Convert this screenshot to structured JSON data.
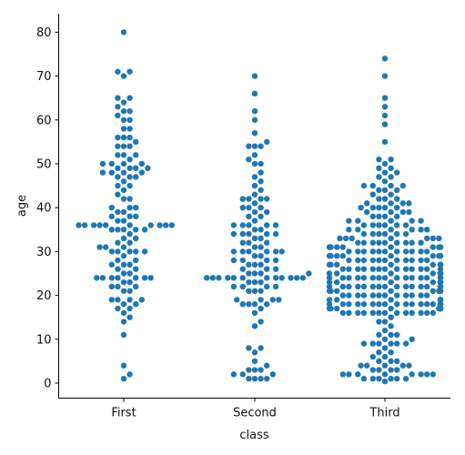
{
  "chart_data": {
    "type": "scatter",
    "subtype": "swarm",
    "title": "",
    "xlabel": "class",
    "ylabel": "age",
    "categories": [
      "First",
      "Second",
      "Third"
    ],
    "ylim": [
      -3.5,
      84
    ],
    "yticks": [
      0,
      10,
      20,
      30,
      40,
      50,
      60,
      70,
      80
    ],
    "grid": false,
    "color": "#1f77b4",
    "series": [
      {
        "category": "First",
        "values": [
          1,
          2,
          4,
          11,
          14,
          15,
          16,
          17,
          17,
          18,
          18,
          19,
          19,
          19,
          19,
          21,
          21,
          22,
          22,
          22,
          23,
          23,
          24,
          24,
          24,
          24,
          24,
          24,
          24,
          25,
          25,
          26,
          26,
          27,
          27,
          27,
          28,
          28,
          29,
          30,
          30,
          30,
          30,
          30,
          31,
          31,
          31,
          32,
          32,
          33,
          33,
          34,
          35,
          35,
          35,
          35,
          35,
          36,
          36,
          36,
          36,
          36,
          36,
          36,
          36,
          36,
          36,
          37,
          37,
          38,
          38,
          38,
          39,
          39,
          40,
          40,
          40,
          42,
          42,
          43,
          44,
          45,
          45,
          46,
          47,
          47,
          47,
          48,
          48,
          48,
          48,
          49,
          49,
          49,
          49,
          50,
          50,
          50,
          50,
          51,
          52,
          52,
          52,
          54,
          54,
          54,
          55,
          56,
          56,
          56,
          58,
          58,
          60,
          60,
          61,
          62,
          62,
          63,
          64,
          65,
          65,
          70,
          71,
          71,
          80
        ]
      },
      {
        "category": "Second",
        "values": [
          1,
          1,
          1,
          1,
          2,
          2,
          2,
          3,
          3,
          3,
          4,
          5,
          7,
          8,
          8,
          13,
          14,
          16,
          17,
          18,
          18,
          18,
          18,
          19,
          19,
          19,
          19,
          21,
          21,
          21,
          22,
          22,
          22,
          22,
          23,
          23,
          23,
          24,
          24,
          24,
          24,
          24,
          24,
          24,
          24,
          24,
          24,
          24,
          24,
          25,
          25,
          25,
          25,
          26,
          26,
          26,
          27,
          27,
          27,
          28,
          28,
          28,
          28,
          29,
          29,
          30,
          30,
          30,
          30,
          30,
          30,
          31,
          31,
          32,
          32,
          32,
          33,
          33,
          34,
          34,
          34,
          34,
          34,
          35,
          35,
          36,
          36,
          36,
          36,
          36,
          37,
          38,
          38,
          39,
          39,
          40,
          40,
          40,
          41,
          42,
          42,
          42,
          42,
          43,
          44,
          45,
          46,
          47,
          48,
          50,
          50,
          51,
          52,
          54,
          54,
          54,
          55,
          57,
          60,
          62,
          66,
          70
        ]
      },
      {
        "category": "Third",
        "values": [
          0.4,
          1,
          1,
          1,
          1,
          1,
          1,
          2,
          2,
          2,
          2,
          2,
          2,
          2,
          2,
          3,
          3,
          3,
          3,
          4,
          4,
          4,
          4,
          4,
          5,
          5,
          5,
          6,
          6,
          7,
          7,
          8,
          9,
          9,
          9,
          9,
          9,
          9,
          10,
          10,
          11,
          11,
          11,
          12,
          13,
          14,
          14,
          15,
          16,
          16,
          16,
          16,
          16,
          16,
          16,
          16,
          16,
          16,
          16,
          16,
          16,
          17,
          17,
          17,
          17,
          17,
          17,
          17,
          17,
          17,
          17,
          17,
          17,
          18,
          18,
          18,
          18,
          18,
          18,
          18,
          18,
          18,
          18,
          18,
          18,
          18,
          18,
          18,
          18,
          18,
          18,
          19,
          19,
          19,
          19,
          19,
          19,
          19,
          19,
          19,
          19,
          19,
          19,
          19,
          19,
          20,
          20,
          20,
          20,
          20,
          20,
          20,
          20,
          20,
          20,
          20,
          20,
          21,
          21,
          21,
          21,
          21,
          21,
          21,
          21,
          21,
          21,
          21,
          21,
          21,
          21,
          22,
          22,
          22,
          22,
          22,
          22,
          22,
          22,
          22,
          22,
          22,
          22,
          22,
          22,
          22,
          22,
          22,
          23,
          23,
          23,
          23,
          23,
          23,
          23,
          23,
          23,
          23,
          23,
          23,
          23,
          24,
          24,
          24,
          24,
          24,
          24,
          24,
          24,
          24,
          24,
          24,
          24,
          24,
          24,
          24,
          24,
          25,
          25,
          25,
          25,
          25,
          25,
          25,
          25,
          25,
          25,
          25,
          25,
          25,
          25,
          26,
          26,
          26,
          26,
          26,
          26,
          26,
          26,
          26,
          26,
          26,
          26,
          26,
          27,
          27,
          27,
          27,
          27,
          27,
          27,
          27,
          27,
          27,
          27,
          28,
          28,
          28,
          28,
          28,
          28,
          28,
          28,
          28,
          28,
          28,
          29,
          29,
          29,
          29,
          29,
          29,
          29,
          29,
          29,
          29,
          30,
          30,
          30,
          30,
          30,
          30,
          30,
          30,
          30,
          30,
          30,
          31,
          31,
          31,
          31,
          31,
          31,
          31,
          31,
          31,
          32,
          32,
          32,
          32,
          32,
          32,
          32,
          32,
          32,
          33,
          33,
          33,
          33,
          33,
          33,
          33,
          34,
          34,
          34,
          34,
          34,
          34,
          35,
          35,
          35,
          35,
          35,
          35,
          36,
          36,
          36,
          36,
          36,
          36,
          37,
          37,
          37,
          37,
          37,
          38,
          38,
          38,
          38,
          39,
          39,
          39,
          39,
          40,
          40,
          40,
          40,
          40,
          41,
          41,
          41,
          41,
          42,
          42,
          42,
          43,
          43,
          44,
          44,
          44,
          45,
          45,
          45,
          45,
          46,
          47,
          47,
          48,
          48,
          49,
          49,
          50,
          51,
          51,
          55,
          59,
          61,
          63,
          65,
          70,
          74
        ]
      }
    ]
  }
}
